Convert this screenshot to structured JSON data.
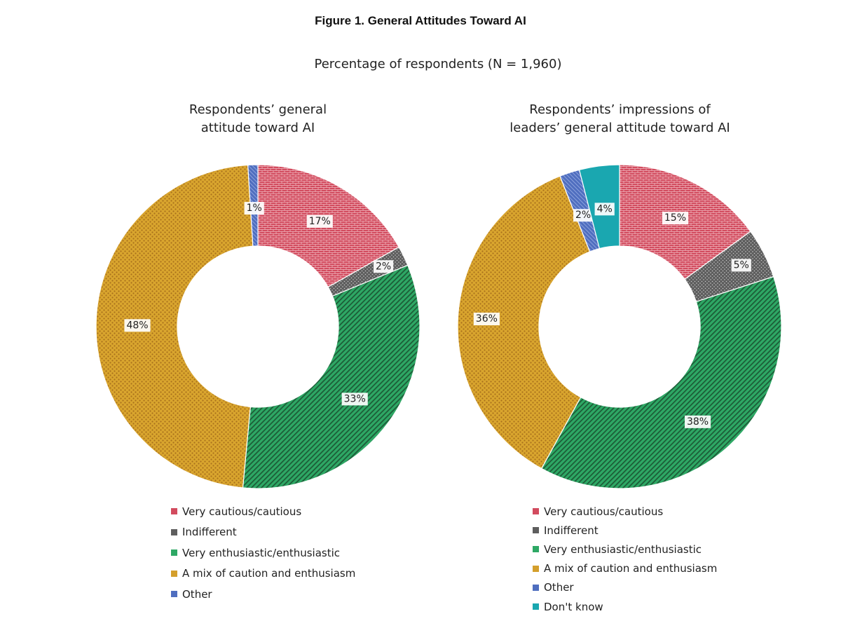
{
  "figure_title": "Figure 1. General Attitudes Toward AI",
  "subtitle": "Percentage of respondents (N = 1,960)",
  "colors": {
    "very_cautious": "#d24b5e",
    "indifferent": "#5e5e5e",
    "very_enthusiastic": "#2ea865",
    "mix": "#d49f2c",
    "other": "#4f6ebf",
    "dont_know": "#1aa7b0"
  },
  "chart_data": [
    {
      "type": "pie",
      "donut": true,
      "title_line1": "Respondents’ general",
      "title_line2": "attitude toward AI",
      "slices": [
        {
          "label": "Very cautious/cautious",
          "value": 17,
          "display": "17%",
          "color_key": "very_cautious"
        },
        {
          "label": "Indifferent",
          "value": 2,
          "display": "2%",
          "color_key": "indifferent"
        },
        {
          "label": "Very enthusiastic/enthusiastic",
          "value": 33,
          "display": "33%",
          "color_key": "very_enthusiastic"
        },
        {
          "label": "A mix of caution and enthusiasm",
          "value": 48,
          "display": "48%",
          "color_key": "mix"
        },
        {
          "label": "Other",
          "value": 1,
          "display": "1%",
          "color_key": "other"
        }
      ]
    },
    {
      "type": "pie",
      "donut": true,
      "title_line1": "Respondents’ impressions of",
      "title_line2": "leaders’ general attitude toward AI",
      "slices": [
        {
          "label": "Very cautious/cautious",
          "value": 15,
          "display": "15%",
          "color_key": "very_cautious"
        },
        {
          "label": "Indifferent",
          "value": 5,
          "display": "5%",
          "color_key": "indifferent"
        },
        {
          "label": "Very enthusiastic/enthusiastic",
          "value": 38,
          "display": "38%",
          "color_key": "very_enthusiastic"
        },
        {
          "label": "A mix of caution and enthusiasm",
          "value": 36,
          "display": "36%",
          "color_key": "mix"
        },
        {
          "label": "Other",
          "value": 2,
          "display": "2%",
          "color_key": "other"
        },
        {
          "label": "Don't know",
          "value": 4,
          "display": "4%",
          "color_key": "dont_know"
        }
      ]
    }
  ]
}
